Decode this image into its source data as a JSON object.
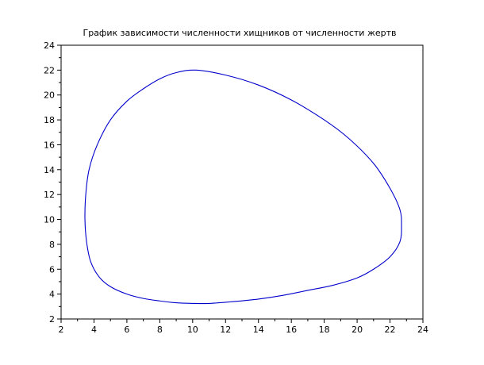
{
  "chart_data": {
    "type": "line",
    "title": "График зависимости численности хищников от численности жертв",
    "xlabel": "",
    "ylabel": "",
    "xlim": [
      2,
      24
    ],
    "ylim": [
      2,
      24
    ],
    "xticks": [
      2,
      4,
      6,
      8,
      10,
      12,
      14,
      16,
      18,
      20,
      22,
      24
    ],
    "yticks": [
      2,
      4,
      6,
      8,
      10,
      12,
      14,
      16,
      18,
      20,
      22,
      24
    ],
    "xtick_labels": [
      "2",
      "4",
      "6",
      "8",
      "10",
      "12",
      "14",
      "16",
      "18",
      "20",
      "22",
      "24"
    ],
    "ytick_labels": [
      "2",
      "4",
      "6",
      "8",
      "10",
      "12",
      "14",
      "16",
      "18",
      "20",
      "22",
      "24"
    ],
    "grid": false,
    "series": [
      {
        "color": "#0000cc",
        "x": [
          10.2,
          12.0,
          14.0,
          16.0,
          18.0,
          19.5,
          21.0,
          22.0,
          22.6,
          22.7,
          22.6,
          22.0,
          21.0,
          20.0,
          18.5,
          17.0,
          15.5,
          14.0,
          12.5,
          11.0,
          10.0,
          9.0,
          8.0,
          7.0,
          6.0,
          5.0,
          4.3,
          3.8,
          3.55,
          3.45,
          3.5,
          3.7,
          4.2,
          5.0,
          6.0,
          7.0,
          8.0,
          9.0,
          10.2
        ],
        "y": [
          22.0,
          21.6,
          20.8,
          19.6,
          18.0,
          16.5,
          14.5,
          12.5,
          10.8,
          9.5,
          8.2,
          7.0,
          6.0,
          5.3,
          4.7,
          4.3,
          3.9,
          3.6,
          3.4,
          3.25,
          3.25,
          3.3,
          3.45,
          3.65,
          4.0,
          4.6,
          5.4,
          6.6,
          8.2,
          10.0,
          12.0,
          14.0,
          16.0,
          18.0,
          19.5,
          20.5,
          21.3,
          21.8,
          22.0
        ]
      }
    ]
  }
}
